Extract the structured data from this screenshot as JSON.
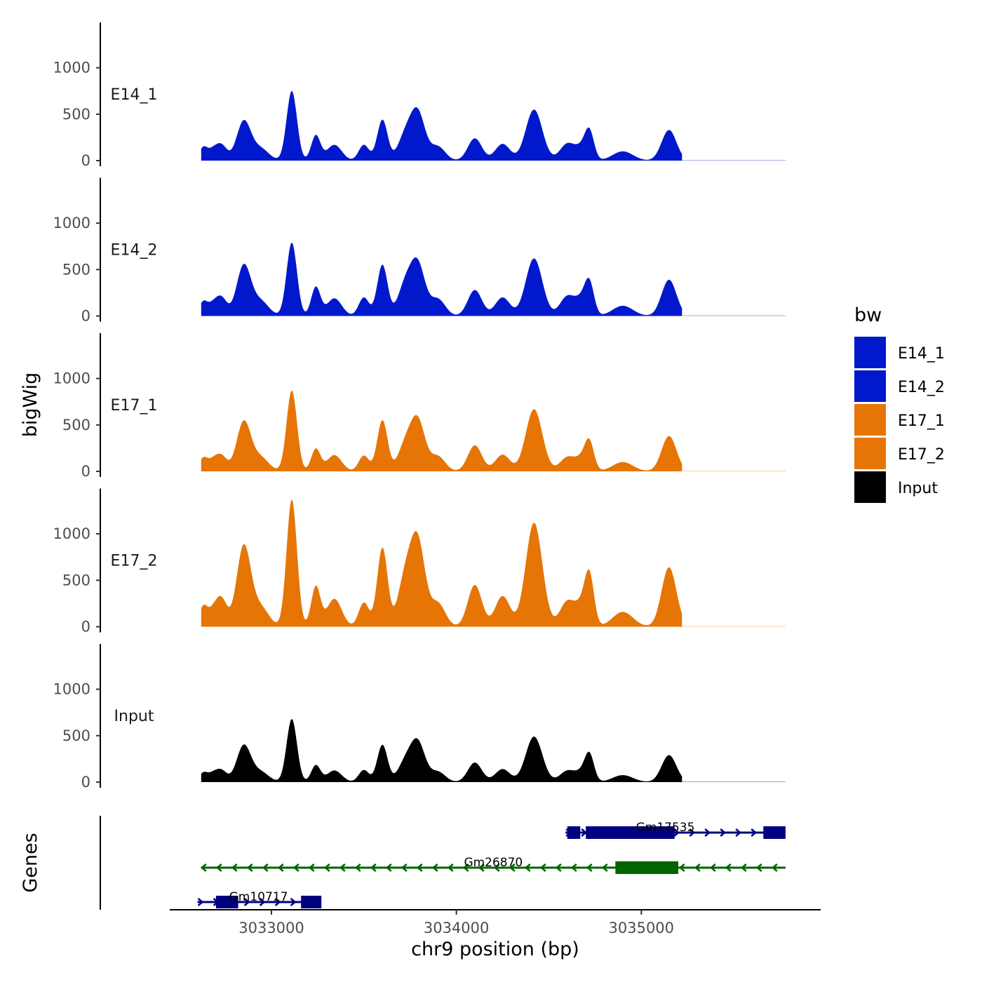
{
  "chart_data": {
    "type": "area",
    "subtype": "genome-browser-coverage",
    "ylabel": "bigWig",
    "xlabel": "chr9 position (bp)",
    "genes_track_label": "Genes",
    "x_ticks": [
      3033000,
      3034000,
      3035000
    ],
    "xlim": [
      3032450,
      3035970
    ],
    "ylim": [
      0,
      1450
    ],
    "y_ticks": [
      0,
      500,
      1000
    ],
    "data_range": [
      3032620,
      3035220
    ],
    "tail_end": 3035780,
    "legend": {
      "title": "bw",
      "position": "right",
      "entries": [
        {
          "label": "E14_1",
          "color": "#0118cd"
        },
        {
          "label": "E14_2",
          "color": "#0118cd"
        },
        {
          "label": "E17_1",
          "color": "#e67505"
        },
        {
          "label": "E17_2",
          "color": "#e67505"
        },
        {
          "label": "Input",
          "color": "#000000"
        }
      ]
    },
    "peak_positions": [
      3032630,
      3032680,
      3032730,
      3032850,
      3032940,
      3033110,
      3033240,
      3033340,
      3033500,
      3033600,
      3033720,
      3033790,
      3033900,
      3034100,
      3034250,
      3034420,
      3034600,
      3034680,
      3034720,
      3034900,
      3035150
    ],
    "peak_widths": [
      22,
      28,
      30,
      38,
      45,
      28,
      25,
      40,
      28,
      28,
      38,
      40,
      40,
      38,
      40,
      45,
      40,
      35,
      25,
      55,
      40
    ],
    "series": [
      {
        "name": "E14_1",
        "label": "E14_1",
        "color": "#0118cd",
        "peaks": [
          130,
          100,
          160,
          420,
          130,
          750,
          270,
          170,
          170,
          440,
          240,
          520,
          150,
          240,
          180,
          550,
          180,
          130,
          280,
          100,
          330
        ]
      },
      {
        "name": "E14_2",
        "label": "E14_2",
        "color": "#0118cd",
        "peaks": [
          140,
          110,
          190,
          540,
          160,
          790,
          310,
          190,
          200,
          550,
          300,
          560,
          180,
          280,
          200,
          620,
          210,
          170,
          310,
          110,
          390
        ]
      },
      {
        "name": "E17_1",
        "label": "E17_1",
        "color": "#e67505",
        "peaks": [
          130,
          105,
          160,
          530,
          150,
          870,
          240,
          175,
          170,
          550,
          250,
          550,
          160,
          280,
          180,
          670,
          150,
          130,
          280,
          100,
          380
        ]
      },
      {
        "name": "E17_2",
        "label": "E17_2",
        "color": "#e67505",
        "peaks": [
          200,
          150,
          290,
          860,
          210,
          1370,
          430,
          300,
          260,
          850,
          470,
          920,
          250,
          450,
          330,
          1120,
          270,
          220,
          490,
          160,
          640
        ]
      },
      {
        "name": "Input",
        "label": "Input",
        "color": "#000000",
        "peaks": [
          90,
          80,
          120,
          390,
          110,
          680,
          180,
          125,
          130,
          400,
          190,
          430,
          110,
          210,
          140,
          490,
          120,
          100,
          270,
          75,
          290
        ]
      }
    ],
    "genes": [
      {
        "name": "Gm17535",
        "strand": "+",
        "color": "#000080",
        "row": 0,
        "start": 3034590,
        "end": 3035780,
        "exons": [
          [
            3034600,
            3034670
          ],
          [
            3034700,
            3035180
          ],
          [
            3035660,
            3035780
          ]
        ],
        "label_pos": 3035130
      },
      {
        "name": "Gm26870",
        "strand": "-",
        "color": "#006400",
        "row": 1,
        "start": 3032620,
        "end": 3035780,
        "exons": [
          [
            3034860,
            3035200
          ]
        ],
        "label_pos": 3034200
      },
      {
        "name": "Gm10717",
        "strand": "+",
        "color": "#000080",
        "row": 2,
        "start": 3032600,
        "end": 3033270,
        "exons": [
          [
            3032700,
            3032820
          ],
          [
            3033160,
            3033270
          ]
        ],
        "label_pos": 3032930
      }
    ]
  }
}
